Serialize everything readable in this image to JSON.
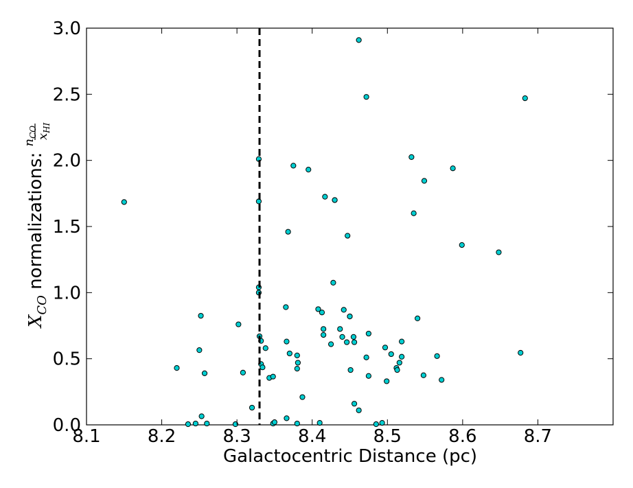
{
  "chart_data": {
    "type": "scatter",
    "xlabel": "Galactocentric Distance (pc)",
    "ylabel_main": "X",
    "ylabel_sub": "CO",
    "ylabel_text": " normalizations: ",
    "ylabel_frac_num": "n",
    "ylabel_frac_num_sub": "CO",
    "ylabel_frac_den": "x",
    "ylabel_frac_den_sub": "HI",
    "xlim": [
      8.1,
      8.8
    ],
    "ylim": [
      0.0,
      3.0
    ],
    "xticks": [
      8.1,
      8.2,
      8.3,
      8.4,
      8.5,
      8.6,
      8.7
    ],
    "xtick_labels": [
      "8.1",
      "8.2",
      "8.3",
      "8.4",
      "8.5",
      "8.6",
      "8.7"
    ],
    "yticks": [
      0.0,
      0.5,
      1.0,
      1.5,
      2.0,
      2.5,
      3.0
    ],
    "ytick_labels": [
      "0.0",
      "0.5",
      "1.0",
      "1.5",
      "2.0",
      "2.5",
      "3.0"
    ],
    "vline_x": 8.33,
    "marker_color": "#00ced1",
    "marker_edge": "#000000",
    "points": [
      [
        8.15,
        1.685
      ],
      [
        8.22,
        0.43
      ],
      [
        8.235,
        0.005
      ],
      [
        8.245,
        0.01
      ],
      [
        8.25,
        0.565
      ],
      [
        8.252,
        0.825
      ],
      [
        8.253,
        0.065
      ],
      [
        8.257,
        0.39
      ],
      [
        8.26,
        0.01
      ],
      [
        8.298,
        0.005
      ],
      [
        8.302,
        0.76
      ],
      [
        8.308,
        0.395
      ],
      [
        8.32,
        0.13
      ],
      [
        8.329,
        2.01
      ],
      [
        8.329,
        1.69
      ],
      [
        8.329,
        1.04
      ],
      [
        8.329,
        1.0
      ],
      [
        8.33,
        0.67
      ],
      [
        8.332,
        0.635
      ],
      [
        8.332,
        0.46
      ],
      [
        8.334,
        0.435
      ],
      [
        8.338,
        0.58
      ],
      [
        8.343,
        0.355
      ],
      [
        8.348,
        0.365
      ],
      [
        8.348,
        0.01
      ],
      [
        8.35,
        0.02
      ],
      [
        8.365,
        0.89
      ],
      [
        8.366,
        0.63
      ],
      [
        8.366,
        0.05
      ],
      [
        8.368,
        1.46
      ],
      [
        8.37,
        0.54
      ],
      [
        8.375,
        1.96
      ],
      [
        8.38,
        0.525
      ],
      [
        8.38,
        0.425
      ],
      [
        8.381,
        0.47
      ],
      [
        8.38,
        0.01
      ],
      [
        8.387,
        0.21
      ],
      [
        8.395,
        1.93
      ],
      [
        8.408,
        0.875
      ],
      [
        8.41,
        0.015
      ],
      [
        8.413,
        0.85
      ],
      [
        8.415,
        0.725
      ],
      [
        8.415,
        0.68
      ],
      [
        8.417,
        1.725
      ],
      [
        8.425,
        0.61
      ],
      [
        8.428,
        1.075
      ],
      [
        8.43,
        1.7
      ],
      [
        8.43,
        1.7
      ],
      [
        8.437,
        0.725
      ],
      [
        8.44,
        0.665
      ],
      [
        8.442,
        0.87
      ],
      [
        8.446,
        0.625
      ],
      [
        8.447,
        1.43
      ],
      [
        8.45,
        0.82
      ],
      [
        8.45,
        0.82
      ],
      [
        8.451,
        0.415
      ],
      [
        8.455,
        0.665
      ],
      [
        8.456,
        0.625
      ],
      [
        8.456,
        0.16
      ],
      [
        8.462,
        0.11
      ],
      [
        8.462,
        2.91
      ],
      [
        8.472,
        2.48
      ],
      [
        8.472,
        0.51
      ],
      [
        8.475,
        0.69
      ],
      [
        8.475,
        0.37
      ],
      [
        8.485,
        0.005
      ],
      [
        8.493,
        0.015
      ],
      [
        8.497,
        0.585
      ],
      [
        8.499,
        0.33
      ],
      [
        8.505,
        0.535
      ],
      [
        8.512,
        0.43
      ],
      [
        8.513,
        0.415
      ],
      [
        8.516,
        0.47
      ],
      [
        8.519,
        0.63
      ],
      [
        8.519,
        0.515
      ],
      [
        8.532,
        2.025
      ],
      [
        8.535,
        1.6
      ],
      [
        8.54,
        0.805
      ],
      [
        8.548,
        0.375
      ],
      [
        8.549,
        1.845
      ],
      [
        8.566,
        0.52
      ],
      [
        8.572,
        0.34
      ],
      [
        8.587,
        1.94
      ],
      [
        8.599,
        1.36
      ],
      [
        8.648,
        1.305
      ],
      [
        8.677,
        0.545
      ],
      [
        8.683,
        2.47
      ]
    ]
  }
}
